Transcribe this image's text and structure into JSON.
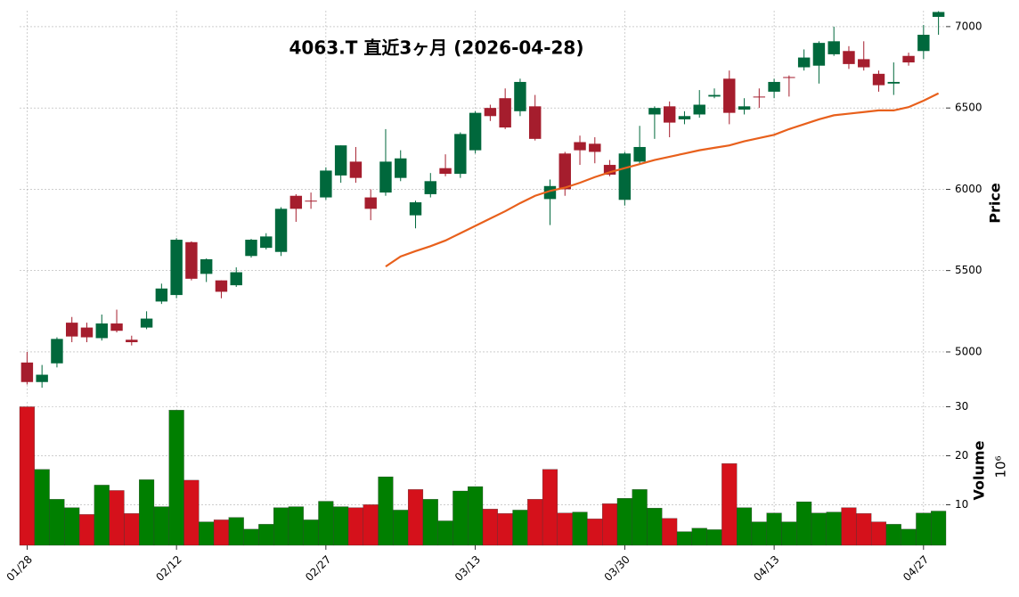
{
  "chart_data": {
    "type": "candlestick",
    "title": "4063.T  直近3ヶ月  (2026-04-28)",
    "ylabel": "Price",
    "categories": [
      "01/28",
      null,
      null,
      null,
      null,
      null,
      null,
      null,
      null,
      null,
      "02/12",
      null,
      null,
      null,
      null,
      null,
      null,
      null,
      null,
      null,
      "02/27",
      null,
      null,
      null,
      null,
      null,
      null,
      null,
      null,
      null,
      "03/13",
      null,
      null,
      null,
      null,
      null,
      null,
      null,
      null,
      null,
      "03/30",
      null,
      null,
      null,
      null,
      null,
      null,
      null,
      null,
      null,
      "04/13",
      null,
      null,
      null,
      null,
      null,
      null,
      null,
      null,
      null,
      "04/27",
      null
    ],
    "open": [
      4935,
      4815,
      4930,
      5180,
      5150,
      5085,
      5175,
      5075,
      5150,
      5310,
      5350,
      5675,
      5480,
      5440,
      5410,
      5590,
      5640,
      5615,
      5960,
      5930,
      5950,
      6085,
      6170,
      5950,
      5980,
      6070,
      5840,
      5970,
      6130,
      6095,
      6240,
      6500,
      6560,
      6480,
      6510,
      5940,
      6220,
      6290,
      6280,
      6150,
      5935,
      6170,
      6460,
      6510,
      6430,
      6460,
      6570,
      6680,
      6490,
      6570,
      6600,
      6690,
      6750,
      6760,
      6830,
      6850,
      6800,
      6710,
      6650,
      6820,
      6850,
      7060
    ],
    "high": [
      5000,
      4920,
      5090,
      5215,
      5180,
      5230,
      5260,
      5100,
      5250,
      5420,
      5700,
      5680,
      5575,
      5440,
      5520,
      5695,
      5730,
      5890,
      5970,
      5980,
      6135,
      6270,
      6260,
      6000,
      6370,
      6240,
      5930,
      6100,
      6215,
      6350,
      6480,
      6520,
      6620,
      6680,
      6580,
      6060,
      6230,
      6330,
      6320,
      6180,
      6230,
      6390,
      6510,
      6540,
      6480,
      6610,
      6620,
      6730,
      6560,
      6620,
      6680,
      6700,
      6860,
      6910,
      7000,
      6880,
      6910,
      6730,
      6780,
      6840,
      7010,
      7095
    ],
    "low": [
      4800,
      4780,
      4905,
      5060,
      5060,
      5070,
      5120,
      5040,
      5140,
      5295,
      5330,
      5440,
      5430,
      5330,
      5400,
      5580,
      5630,
      5590,
      5800,
      5880,
      5935,
      6040,
      6040,
      5810,
      5960,
      6050,
      5760,
      5950,
      6080,
      6070,
      6220,
      6420,
      6370,
      6450,
      6300,
      5780,
      5960,
      6150,
      6160,
      6080,
      5900,
      6150,
      6310,
      6320,
      6400,
      6440,
      6560,
      6400,
      6460,
      6500,
      6560,
      6570,
      6730,
      6650,
      6820,
      6740,
      6730,
      6600,
      6580,
      6760,
      6800,
      6950
    ],
    "close": [
      4815,
      4860,
      5080,
      5095,
      5090,
      5175,
      5130,
      5060,
      5205,
      5390,
      5690,
      5450,
      5570,
      5370,
      5490,
      5690,
      5710,
      5880,
      5880,
      5925,
      6115,
      6270,
      6070,
      5880,
      6170,
      6190,
      5920,
      6050,
      6095,
      6340,
      6470,
      6450,
      6380,
      6660,
      6310,
      6020,
      6000,
      6240,
      6230,
      6090,
      6220,
      6260,
      6500,
      6410,
      6450,
      6520,
      6580,
      6470,
      6510,
      6565,
      6660,
      6688,
      6810,
      6900,
      6910,
      6770,
      6750,
      6640,
      6660,
      6780,
      6950,
      7090
    ],
    "up_color": "#00683c",
    "down_color": "#a51d2d",
    "moving_average": {
      "color": "#e8601c",
      "values": [
        null,
        null,
        null,
        null,
        null,
        null,
        null,
        null,
        null,
        null,
        null,
        null,
        null,
        null,
        null,
        null,
        null,
        null,
        null,
        null,
        null,
        null,
        null,
        null,
        5525,
        5587,
        5620,
        5650,
        5685,
        5730,
        5775,
        5820,
        5865,
        5915,
        5960,
        5990,
        6010,
        6040,
        6075,
        6105,
        6130,
        6155,
        6180,
        6200,
        6220,
        6240,
        6255,
        6270,
        6295,
        6315,
        6335,
        6370,
        6400,
        6430,
        6455,
        6465,
        6475,
        6485,
        6485,
        6505,
        6545,
        6590
      ]
    },
    "ylim": [
      4726,
      7098
    ],
    "yticks": [
      5000,
      5500,
      6000,
      6500,
      7000
    ],
    "grid": true,
    "volume": {
      "label": "Volume",
      "scale_label": "10⁶",
      "up_color": "#007f00",
      "down_color": "#d5111b",
      "values": [
        30.0,
        17.2,
        11.1,
        9.4,
        8.0,
        14.0,
        12.9,
        8.2,
        15.1,
        9.6,
        29.3,
        15.0,
        6.5,
        6.9,
        7.4,
        5.0,
        6.0,
        9.4,
        9.6,
        6.9,
        10.7,
        9.6,
        9.4,
        10.0,
        15.7,
        8.9,
        13.1,
        11.1,
        6.7,
        12.8,
        13.7,
        9.1,
        8.2,
        8.9,
        11.1,
        17.2,
        8.3,
        8.5,
        7.1,
        10.2,
        11.3,
        13.1,
        9.3,
        7.2,
        4.5,
        5.2,
        4.9,
        18.4,
        9.4,
        6.5,
        8.3,
        6.5,
        10.6,
        8.3,
        8.5,
        9.4,
        8.2,
        6.5,
        6.0,
        5.0,
        8.3,
        8.7
      ],
      "ylim": [
        1.7,
        31
      ],
      "yticks": [
        10,
        20,
        30
      ]
    }
  }
}
